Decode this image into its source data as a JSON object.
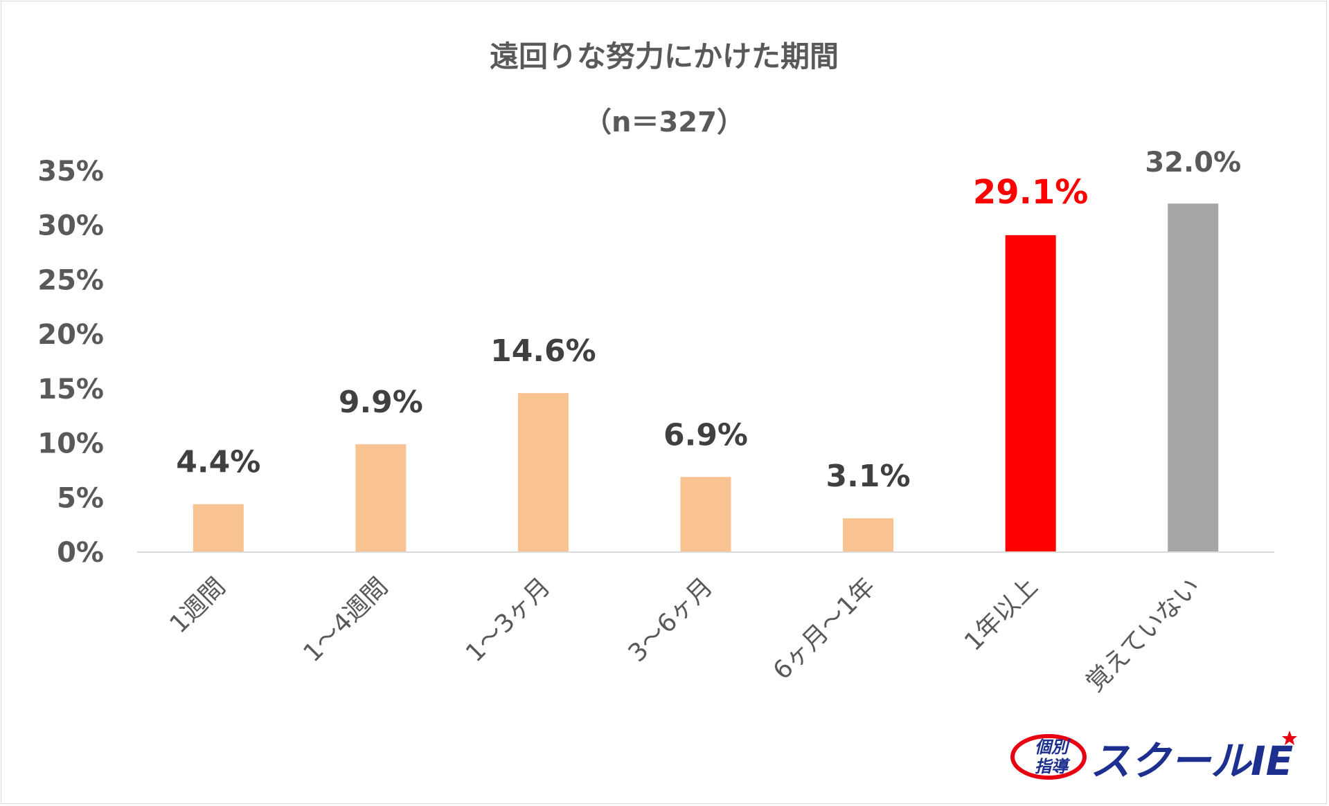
{
  "chart_data": {
    "type": "bar",
    "title": "遠回りな努力にかけた期間",
    "subtitle": "（n＝327）",
    "categories": [
      "1週間",
      "1～4週間",
      "1～3ヶ月",
      "3～6ヶ月",
      "6ヶ月～1年",
      "1年以上",
      "覚えていない"
    ],
    "values": [
      4.4,
      9.9,
      14.6,
      6.9,
      3.1,
      29.1,
      32.0
    ],
    "data_labels": [
      "4.4%",
      "9.9%",
      "14.6%",
      "6.9%",
      "3.1%",
      "29.1%",
      "32.0%"
    ],
    "y_ticks": [
      "0%",
      "5%",
      "10%",
      "15%",
      "20%",
      "25%",
      "30%",
      "35%"
    ],
    "ylim": [
      0,
      35
    ],
    "grid": false,
    "colors": {
      "default_bar": "#f8c291",
      "highlight_bar": "#ff0000",
      "unknown_bar": "#a6a6a6",
      "label_default": "#404040",
      "label_highlight": "#ff0000",
      "label_unknown": "#595959"
    },
    "bar_colors": [
      "#f8c291",
      "#f8c291",
      "#f8c291",
      "#f8c291",
      "#f8c291",
      "#ff0000",
      "#a6a6a6"
    ],
    "label_colors": [
      "#404040",
      "#404040",
      "#404040",
      "#404040",
      "#404040",
      "#ff0000",
      "#595959"
    ]
  },
  "logo": {
    "text_small_1": "個別",
    "text_small_2": "指導",
    "text_main": "スクールIE"
  }
}
